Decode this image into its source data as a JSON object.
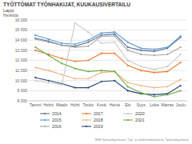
{
  "chart_data": {
    "type": "line",
    "title": "TYÖTTÖMAT TYÖNHAKIJAT, KUUKAUSIVERTAILU",
    "subtitle": "Lappi",
    "y_label": "Henkilöä",
    "source": "TEM Työnvälitystilasto / Työ- ja elinkeinoministeriö, Työnvälitystilasto",
    "categories": [
      "Tammi",
      "Helmi",
      "Maalis",
      "Huhti",
      "Touko",
      "Kesä",
      "Heinä",
      "Elo",
      "Syys",
      "Loka",
      "Marras",
      "Joulu"
    ],
    "ylim": [
      8000,
      16000
    ],
    "yticks": [
      {
        "value": 8000,
        "label": "8 000"
      },
      {
        "value": 9000,
        "label": "9 000"
      },
      {
        "value": 10000,
        "label": "10 000"
      },
      {
        "value": 11000,
        "label": "11 000"
      },
      {
        "value": 12000,
        "label": "12 000"
      },
      {
        "value": 13000,
        "label": "13 000"
      },
      {
        "value": 14000,
        "label": "14 000"
      },
      {
        "value": 15000,
        "label": "15 000"
      },
      {
        "value": 16000,
        "label": "16 000"
      }
    ],
    "grid": true,
    "legend": "bottom",
    "marker": "circle",
    "series": [
      {
        "name": "2014",
        "color": "#5b6f8f",
        "values": [
          14200,
          13900,
          13500,
          13400,
          13800,
          14500,
          14600,
          13300,
          13000,
          12900,
          13200,
          14300
        ]
      },
      {
        "name": "2015",
        "color": "#5b9bd5",
        "values": [
          14500,
          14100,
          13700,
          13600,
          14000,
          14700,
          14800,
          13800,
          13200,
          13100,
          13300,
          14400
        ]
      },
      {
        "name": "2016",
        "color": "#a5a5a5",
        "values": [
          14100,
          13800,
          13500,
          13300,
          13400,
          14400,
          14400,
          13000,
          12600,
          12500,
          12600,
          13300
        ]
      },
      {
        "name": "2017",
        "color": "#ed7d31",
        "values": [
          13000,
          12600,
          12200,
          11900,
          12000,
          12700,
          12700,
          11500,
          11000,
          10800,
          10900,
          11800
        ]
      },
      {
        "name": "2018",
        "color": "#f4b183",
        "values": [
          11300,
          11000,
          10600,
          10200,
          10200,
          10800,
          10900,
          9800,
          9500,
          9300,
          9400,
          10100
        ]
      },
      {
        "name": "2019",
        "color": "#264478",
        "values": [
          10300,
          10000,
          9700,
          9300,
          9300,
          9900,
          10000,
          9000,
          8700,
          8600,
          8700,
          9500
        ]
      },
      {
        "name": "2020",
        "color": "#c9c9c9",
        "values": [
          10000,
          9800,
          9600,
          15700,
          14800,
          13700,
          13800,
          12000,
          11400,
          11100,
          11400,
          12600
        ]
      },
      {
        "name": "2021",
        "color": "#70ad47",
        "values": [
          13300,
          12500,
          11700,
          11200,
          10900,
          11000,
          10900,
          9400,
          8800,
          8400,
          8600,
          9000
        ]
      }
    ]
  }
}
